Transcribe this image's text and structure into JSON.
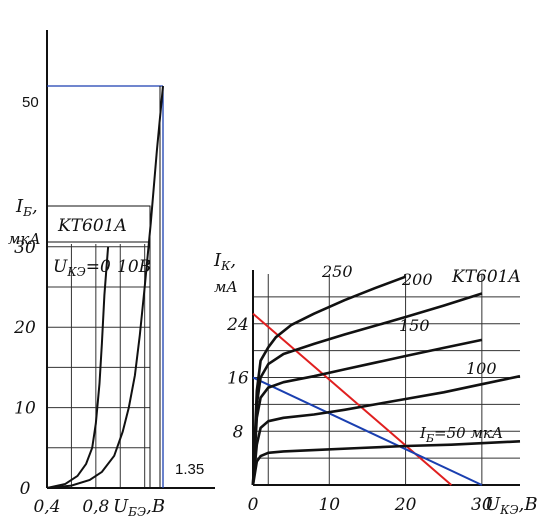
{
  "chart_data": [
    {
      "type": "line",
      "chart_id": "input-characteristics",
      "device_label": "KT601A",
      "ylabel": "I",
      "ylabel_sub": "Б",
      "ylabel_unit": "мкА",
      "xlabel": "U",
      "xlabel_sub": "БЭ",
      "xlabel_unit": ",B",
      "x_ticks": [
        "0,4",
        "0,8"
      ],
      "x_tick_values": [
        0.4,
        0.8
      ],
      "y_ticks": [
        "0",
        "10",
        "20",
        "30"
      ],
      "y_tick_values": [
        0,
        10,
        20,
        30
      ],
      "extra_labels": {
        "y_marker": "50",
        "x_marker": "1.35"
      },
      "ylim": [
        0,
        60
      ],
      "xlim": [
        0.4,
        1.45
      ],
      "series": [
        {
          "name": "UКЭ=0",
          "label_main": "U",
          "label_sub": "КЭ",
          "label_rest": "=0",
          "x": [
            0.4,
            0.55,
            0.65,
            0.72,
            0.77,
            0.8,
            0.83,
            0.85,
            0.87,
            0.9
          ],
          "y": [
            0,
            0.5,
            1.5,
            3,
            5,
            8,
            13,
            18,
            24,
            30
          ]
        },
        {
          "name": "10B",
          "label_main": "10B",
          "x": [
            0.4,
            0.6,
            0.75,
            0.85,
            0.95,
            1.02,
            1.07,
            1.12,
            1.16,
            1.2,
            1.25,
            1.3,
            1.35
          ],
          "y": [
            0,
            0.3,
            1,
            2,
            4,
            7,
            10,
            14,
            19,
            25,
            33,
            42,
            50
          ]
        }
      ],
      "marker_lines": {
        "y": 50,
        "x": 1.35,
        "color": "#1a3fb0"
      }
    },
    {
      "type": "line",
      "chart_id": "output-characteristics",
      "device_label": "KT601A",
      "ylabel": "I",
      "ylabel_sub": "К",
      "ylabel_unit": "мА",
      "xlabel": "U",
      "xlabel_sub": "КЭ",
      "xlabel_unit": ",B",
      "x_ticks": [
        "0",
        "10",
        "20",
        "30"
      ],
      "x_tick_values": [
        0,
        10,
        20,
        30
      ],
      "y_ticks": [
        "8",
        "16",
        "24"
      ],
      "y_tick_values": [
        8,
        16,
        24
      ],
      "xlim": [
        0,
        35
      ],
      "ylim": [
        0,
        32
      ],
      "curve_labels": [
        "250",
        "200",
        "150",
        "100",
        "IБ=50 мкА"
      ],
      "ib50_label": {
        "main": "I",
        "sub": "Б",
        "rest": "=50 мкА"
      },
      "series": [
        {
          "name": "250",
          "x": [
            0,
            0.5,
            1,
            2,
            3,
            5,
            8,
            12,
            16,
            20
          ],
          "y": [
            0,
            14,
            18.5,
            20.5,
            22,
            23.8,
            25.5,
            27.5,
            29.3,
            31
          ]
        },
        {
          "name": "200",
          "x": [
            0,
            0.5,
            1,
            2,
            4,
            8,
            12,
            16,
            20,
            25,
            30
          ],
          "y": [
            0,
            12,
            16,
            18,
            19.5,
            21,
            22.4,
            23.7,
            25,
            26.7,
            28.5
          ]
        },
        {
          "name": "150",
          "x": [
            0,
            0.5,
            1,
            2,
            4,
            8,
            12,
            16,
            20,
            25,
            30
          ],
          "y": [
            0,
            10,
            13,
            14.5,
            15.3,
            16.2,
            17.2,
            18.2,
            19.2,
            20.4,
            21.6
          ]
        },
        {
          "name": "100",
          "x": [
            0,
            0.5,
            1,
            2,
            4,
            8,
            12,
            16,
            20,
            25,
            30,
            35
          ],
          "y": [
            0,
            6,
            8.5,
            9.5,
            10,
            10.5,
            11.2,
            12,
            12.8,
            13.8,
            15,
            16.2
          ]
        },
        {
          "name": "IБ=50 мкА",
          "x": [
            0,
            0.5,
            1,
            2,
            4,
            8,
            14,
            20,
            26,
            35
          ],
          "y": [
            0,
            3.5,
            4.3,
            4.8,
            5,
            5.2,
            5.5,
            5.8,
            6,
            6.5
          ]
        }
      ],
      "load_lines": [
        {
          "color": "#e01f1f",
          "x": [
            0,
            26
          ],
          "y": [
            25.5,
            0
          ]
        },
        {
          "color": "#1a3fb0",
          "x": [
            0,
            30
          ],
          "y": [
            16,
            0
          ]
        }
      ]
    }
  ]
}
